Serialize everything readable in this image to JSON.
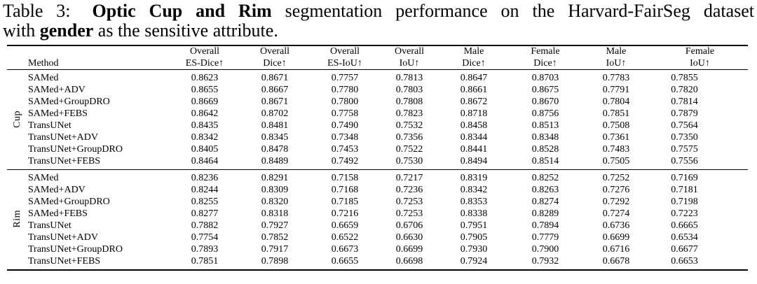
{
  "caption": {
    "label": "Table 3:",
    "bold_title": "Optic Cup and Rim",
    "line1_rest": "segmentation performance on the Harvard-FairSeg dataset",
    "line2_pre": "with",
    "bold_attribute": "gender",
    "line2_rest": "as the sensitive attribute."
  },
  "table": {
    "method_header": "Method",
    "columns": [
      {
        "line1": "Overall",
        "line2": "ES-Dice↑"
      },
      {
        "line1": "Overall",
        "line2": "Dice↑"
      },
      {
        "line1": "Overall",
        "line2": "ES-IoU↑"
      },
      {
        "line1": "Overall",
        "line2": "IoU↑"
      },
      {
        "line1": "Male",
        "line2": "Dice↑"
      },
      {
        "line1": "Female",
        "line2": "Dice↑"
      },
      {
        "line1": "Male",
        "line2": "IoU↑"
      },
      {
        "line1": "Female",
        "line2": "IoU↑"
      }
    ],
    "groups": [
      {
        "label": "Cup",
        "rows": [
          {
            "method": "SAMed",
            "method_bold": 0,
            "values": [
              "0.8623",
              "0.8671",
              "0.7757",
              "0.7813",
              "0.8647",
              "0.8703",
              "0.7783",
              "0.7855"
            ],
            "bold": [
              0,
              0,
              0,
              0,
              0,
              0,
              0,
              0
            ]
          },
          {
            "method": "SAMed+ADV",
            "method_bold": 0,
            "values": [
              "0.8655",
              "0.8667",
              "0.7780",
              "0.7803",
              "0.8661",
              "0.8675",
              "0.7791",
              "0.7820"
            ],
            "bold": [
              0,
              0,
              0,
              0,
              0,
              0,
              0,
              0
            ]
          },
          {
            "method": "SAMed+GroupDRO",
            "method_bold": 0,
            "values": [
              "0.8669",
              "0.8671",
              "0.7800",
              "0.7808",
              "0.8672",
              "0.8670",
              "0.7804",
              "0.7814"
            ],
            "bold": [
              1,
              0,
              1,
              0,
              0,
              0,
              0,
              0
            ]
          },
          {
            "method": "SAMed+FEBS",
            "method_bold": 1,
            "values": [
              "0.8642",
              "0.8702",
              "0.7758",
              "0.7823",
              "0.8718",
              "0.8756",
              "0.7851",
              "0.7879"
            ],
            "bold": [
              0,
              1,
              0,
              1,
              1,
              1,
              1,
              1
            ]
          },
          {
            "method": "TransUNet",
            "method_bold": 0,
            "values": [
              "0.8435",
              "0.8481",
              "0.7490",
              "0.7532",
              "0.8458",
              "0.8513",
              "0.7508",
              "0.7564"
            ],
            "bold": [
              0,
              0,
              0,
              1,
              0,
              0,
              1,
              1
            ]
          },
          {
            "method": "TransUNet+ADV",
            "method_bold": 0,
            "values": [
              "0.8342",
              "0.8345",
              "0.7348",
              "0.7356",
              "0.8344",
              "0.8348",
              "0.7361",
              "0.7350"
            ],
            "bold": [
              0,
              0,
              0,
              0,
              0,
              0,
              0,
              0
            ]
          },
          {
            "method": "TransUNet+GroupDRO",
            "method_bold": 0,
            "values": [
              "0.8405",
              "0.8478",
              "0.7453",
              "0.7522",
              "0.8441",
              "0.8528",
              "0.7483",
              "0.7575"
            ],
            "bold": [
              0,
              0,
              0,
              0,
              0,
              1,
              0,
              0
            ]
          },
          {
            "method": "TransUNet+FEBS",
            "method_bold": 1,
            "values": [
              "0.8464",
              "0.8489",
              "0.7492",
              "0.7530",
              "0.8494",
              "0.8514",
              "0.7505",
              "0.7556"
            ],
            "bold": [
              1,
              1,
              1,
              0,
              1,
              0,
              0,
              0
            ]
          }
        ]
      },
      {
        "label": "Rim",
        "rows": [
          {
            "method": "SAMed",
            "method_bold": 0,
            "values": [
              "0.8236",
              "0.8291",
              "0.7158",
              "0.7217",
              "0.8319",
              "0.8252",
              "0.7252",
              "0.7169"
            ],
            "bold": [
              0,
              0,
              0,
              0,
              0,
              0,
              0,
              0
            ]
          },
          {
            "method": "SAMed+ADV",
            "method_bold": 0,
            "values": [
              "0.8244",
              "0.8309",
              "0.7168",
              "0.7236",
              "0.8342",
              "0.8263",
              "0.7276",
              "0.7181"
            ],
            "bold": [
              0,
              0,
              0,
              0,
              0,
              0,
              0,
              0
            ]
          },
          {
            "method": "SAMed+GroupDRO",
            "method_bold": 0,
            "values": [
              "0.8255",
              "0.8320",
              "0.7185",
              "0.7253",
              "0.8353",
              "0.8274",
              "0.7292",
              "0.7198"
            ],
            "bold": [
              0,
              1,
              0,
              0,
              1,
              0,
              1,
              0
            ]
          },
          {
            "method": "SAMed+FEBS",
            "method_bold": 1,
            "values": [
              "0.8277",
              "0.8318",
              "0.7216",
              "0.7253",
              "0.8338",
              "0.8289",
              "0.7274",
              "0.7223"
            ],
            "bold": [
              1,
              0,
              1,
              1,
              0,
              1,
              0,
              1
            ]
          },
          {
            "method": "TransUNet",
            "method_bold": 0,
            "values": [
              "0.7882",
              "0.7927",
              "0.6659",
              "0.6706",
              "0.7951",
              "0.7894",
              "0.6736",
              "0.6665"
            ],
            "bold": [
              0,
              1,
              0,
              1,
              1,
              0,
              0,
              0
            ]
          },
          {
            "method": "TransUNet+ADV",
            "method_bold": 0,
            "values": [
              "0.7754",
              "0.7852",
              "0.6522",
              "0.6630",
              "0.7905",
              "0.7779",
              "0.6699",
              "0.6534"
            ],
            "bold": [
              0,
              0,
              0,
              0,
              0,
              0,
              0,
              0
            ]
          },
          {
            "method": "TransUNet+GroupDRO",
            "method_bold": 0,
            "values": [
              "0.7893",
              "0.7917",
              "0.6673",
              "0.6699",
              "0.7930",
              "0.7900",
              "0.6716",
              "0.6677"
            ],
            "bold": [
              1,
              0,
              1,
              0,
              0,
              0,
              1,
              1
            ]
          },
          {
            "method": "TransUNet+FEBS",
            "method_bold": 1,
            "values": [
              "0.7851",
              "0.7898",
              "0.6655",
              "0.6698",
              "0.7924",
              "0.7932",
              "0.6678",
              "0.6653"
            ],
            "bold": [
              0,
              0,
              0,
              0,
              0,
              1,
              0,
              0
            ]
          }
        ]
      }
    ]
  }
}
